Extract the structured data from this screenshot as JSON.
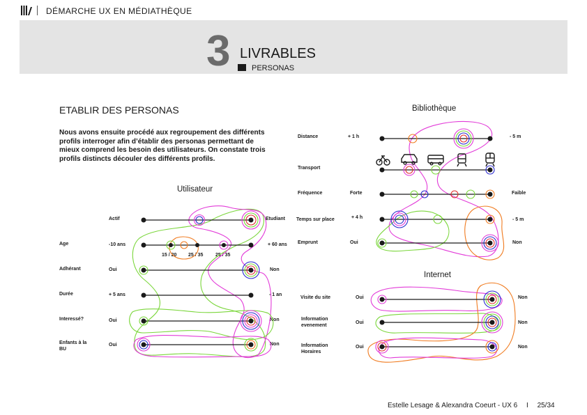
{
  "header": {
    "topic": "DÉMARCHE UX EN MÉDIATHÈQUE"
  },
  "banner": {
    "number": "3",
    "title": "LIVRABLES",
    "subtitle": "PERSONAS"
  },
  "section_heading": "ETABLIR DES PERSONAS",
  "intro_text": "Nous avons ensuite procédé aux regroupement des différents profils interroger afin d’établir des personas permettant de mieux comprend les besoin des utilisateurs. On constate trois profils distincts  découler des différents profils.",
  "utilisateur": {
    "title": "Utilisateur",
    "rows": [
      {
        "label": "",
        "left": "Actif",
        "right": "Etudiant"
      },
      {
        "label": "Age",
        "left": "-10 ans",
        "right": "+ 60 ans",
        "ticks": [
          "15 / 20",
          "25 / 35",
          "25 / 35"
        ]
      },
      {
        "label": "Adhérant",
        "left": "Oui",
        "right": "Non"
      },
      {
        "label": "Durée",
        "left": "+ 5 ans",
        "right": "- 1 an"
      },
      {
        "label": "Interessé?",
        "left": "Oui",
        "right": "Non"
      },
      {
        "label": "Enfants à la BU",
        "left": "Oui",
        "right": "Non"
      }
    ]
  },
  "bibliotheque": {
    "title": "Bibliothèque",
    "rows": [
      {
        "label": "Distance",
        "left": "+ 1 h",
        "right": "- 5 m"
      },
      {
        "label": "Transport",
        "left": "",
        "right": ""
      },
      {
        "label": "Fréquence",
        "left": "Forte",
        "right": "Faible"
      },
      {
        "label": "Temps sur place",
        "left": "+ 4 h",
        "right": "- 5 m"
      },
      {
        "label": "Emprunt",
        "left": "Oui",
        "right": "Non"
      }
    ],
    "transport_icons": [
      "bicycle-icon",
      "car-icon",
      "bus-icon",
      "tram-icon",
      "train-icon"
    ]
  },
  "internet": {
    "title": "Internet",
    "rows": [
      {
        "label": "Visite du site",
        "left": "Oui",
        "right": "Non"
      },
      {
        "label": "Information evenement",
        "left": "Oui",
        "right": "Non"
      },
      {
        "label": "Information Horaires",
        "left": "Oui",
        "right": "Non"
      }
    ]
  },
  "persona_colors": {
    "green": "#7ad63a",
    "magenta": "#e23ad8",
    "orange": "#f07a1e",
    "red": "#e03030",
    "blue": "#2b2bd0"
  },
  "footer": {
    "credits": "Estelle Lesage & Alexandra Coeurt - UX 6",
    "separator": "I",
    "page": "25/34"
  }
}
